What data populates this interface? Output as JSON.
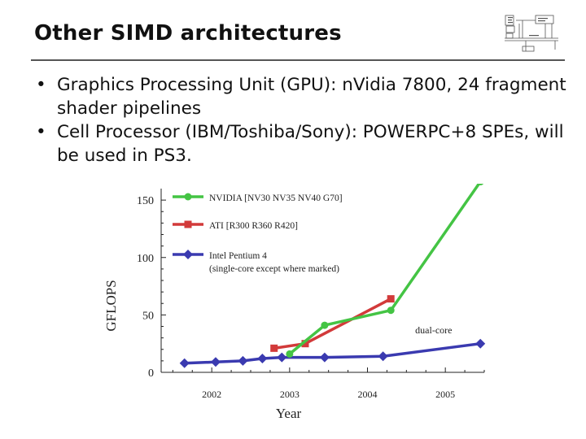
{
  "slide": {
    "title": "Other SIMD architectures",
    "bullets": [
      "Graphics Processing Unit (GPU): nVidia 7800, 24 fragment shader pipelines",
      "Cell Processor (IBM/Toshiba/Sony): POWERPC+8 SPEs, will be used in PS3."
    ],
    "bullet_symbol": "•"
  },
  "logo": {
    "icon": "circuit-diagram-logo"
  },
  "chart_data": {
    "type": "line",
    "title": "",
    "xlabel": "Year",
    "ylabel": "GFLOPS",
    "xlim": [
      2001.35,
      2005.5
    ],
    "ylim": [
      0,
      160
    ],
    "xticks": [
      2002,
      2003,
      2004,
      2005
    ],
    "yticks": [
      0,
      50,
      100,
      150
    ],
    "grid": false,
    "legend_position": "top-left",
    "series": [
      {
        "name": "NVIDIA [NV30 NV35 NV40 G70]",
        "color": "#44c444",
        "marker": "circle",
        "x": [
          2003.0,
          2003.45,
          2004.3,
          2005.45
        ],
        "y": [
          16,
          41,
          54,
          166
        ]
      },
      {
        "name": "ATI [R300 R360 R420]",
        "color": "#d23a3a",
        "marker": "square",
        "x": [
          2002.8,
          2003.2,
          2004.3
        ],
        "y": [
          21,
          25,
          64
        ]
      },
      {
        "name": "Intel Pentium 4",
        "subtitle": "(single-core except where marked)",
        "color": "#3a3ab0",
        "marker": "diamond",
        "x": [
          2001.65,
          2002.05,
          2002.4,
          2002.65,
          2002.9,
          2003.45,
          2004.2,
          2005.45
        ],
        "y": [
          8,
          9,
          10,
          12,
          13,
          13,
          14,
          25
        ]
      }
    ],
    "annotations": [
      {
        "text": "dual-core",
        "x": 2004.85,
        "y": 32
      }
    ]
  }
}
